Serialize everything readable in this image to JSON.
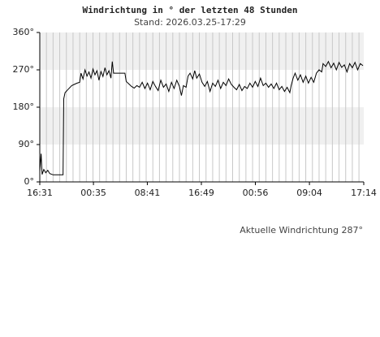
{
  "chart_data": {
    "type": "line",
    "title": "Windrichtung in ° der letzten 48 Stunden",
    "subtitle": "Stand: 2026.03.25-17:29",
    "annotation": "Aktuelle Windrichtung 287°",
    "x": [
      0,
      0.2,
      0.35,
      0.6,
      0.9,
      1.2,
      1.5,
      2,
      3,
      3.5,
      3.6,
      3.8,
      4.2,
      4.8,
      5.2,
      5.6,
      6,
      6.2,
      6.5,
      6.8,
      7.1,
      7.4,
      7.7,
      8,
      8.3,
      8.6,
      8.9,
      9.2,
      9.5,
      9.8,
      10.1,
      10.4,
      10.7,
      10.9,
      11.1,
      12,
      12.8,
      13,
      13.4,
      13.8,
      14.2,
      14.6,
      15,
      15.4,
      15.8,
      16.2,
      16.6,
      17,
      17.4,
      17.8,
      18.2,
      18.6,
      19,
      19.4,
      19.8,
      20.2,
      20.6,
      21,
      21.3,
      21.6,
      22,
      22.3,
      22.6,
      23,
      23.3,
      23.6,
      24,
      24.4,
      24.8,
      25.2,
      25.6,
      26,
      26.4,
      26.8,
      27.2,
      27.6,
      28,
      28.4,
      28.8,
      29.2,
      29.6,
      30,
      30.4,
      30.8,
      31.2,
      31.6,
      32,
      32.4,
      32.8,
      33.2,
      33.6,
      34,
      34.4,
      34.8,
      35.2,
      35.6,
      36,
      36.4,
      36.8,
      37.2,
      37.6,
      37.8,
      38.1,
      38.4,
      38.8,
      39.2,
      39.6,
      40,
      40.4,
      40.8,
      41.2,
      41.6,
      42,
      42.4,
      42.6,
      43,
      43.4,
      43.8,
      44.2,
      44.6,
      45,
      45.4,
      45.8,
      46.2,
      46.6,
      47,
      47.4,
      47.8,
      48.2,
      48.6
    ],
    "series": [
      {
        "name": "Windrichtung",
        "color": "#000000",
        "values": [
          25,
          68,
          18,
          30,
          22,
          28,
          20,
          17,
          17,
          17,
          200,
          215,
          222,
          232,
          235,
          238,
          240,
          262,
          248,
          270,
          255,
          265,
          250,
          272,
          258,
          268,
          245,
          266,
          254,
          275,
          258,
          268,
          250,
          290,
          262,
          262,
          262,
          242,
          236,
          230,
          226,
          232,
          228,
          240,
          225,
          238,
          222,
          242,
          230,
          220,
          245,
          228,
          236,
          218,
          240,
          225,
          245,
          230,
          208,
          232,
          228,
          255,
          262,
          248,
          268,
          250,
          260,
          240,
          230,
          242,
          218,
          238,
          230,
          245,
          225,
          240,
          232,
          248,
          235,
          228,
          222,
          235,
          220,
          230,
          225,
          238,
          228,
          242,
          230,
          250,
          232,
          238,
          228,
          236,
          225,
          238,
          222,
          230,
          218,
          228,
          215,
          232,
          250,
          262,
          245,
          258,
          240,
          255,
          238,
          252,
          240,
          262,
          270,
          265,
          285,
          278,
          290,
          275,
          286,
          270,
          288,
          276,
          282,
          265,
          285,
          275,
          288,
          270,
          285,
          280
        ]
      }
    ],
    "xlim": [
      0,
      48.72
    ],
    "xticks": [
      {
        "value": 0,
        "label": "16:31"
      },
      {
        "value": 8.07,
        "label": "00:35"
      },
      {
        "value": 16.17,
        "label": "08:41"
      },
      {
        "value": 24.3,
        "label": "16:49"
      },
      {
        "value": 32.42,
        "label": "00:56"
      },
      {
        "value": 40.55,
        "label": "09:04"
      },
      {
        "value": 48.72,
        "label": "17:14"
      }
    ],
    "ylim": [
      0,
      360
    ],
    "yticks": [
      {
        "value": 0,
        "label": "0°"
      },
      {
        "value": 90,
        "label": "90°"
      },
      {
        "value": 180,
        "label": "180°"
      },
      {
        "value": 270,
        "label": "270°"
      },
      {
        "value": 360,
        "label": "360°"
      }
    ],
    "grid": true
  }
}
